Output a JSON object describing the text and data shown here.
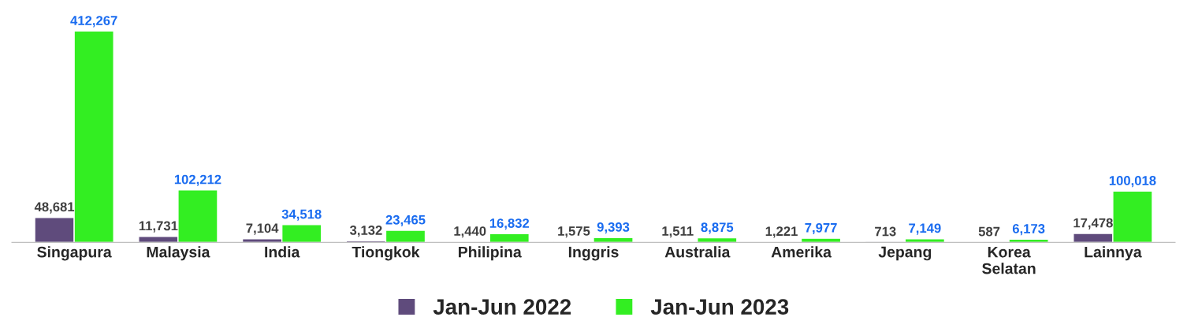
{
  "chart_data": {
    "type": "bar",
    "categories": [
      "Singapura",
      "Malaysia",
      "India",
      "Tiongkok",
      "Philipina",
      "Inggris",
      "Australia",
      "Amerika",
      "Jepang",
      "Korea\nSelatan",
      "Lainnya"
    ],
    "series": [
      {
        "name": "Jan-Jun 2022",
        "color": "#5f4b7c",
        "values": [
          48681,
          11731,
          7104,
          3132,
          1440,
          1575,
          1511,
          1221,
          713,
          587,
          17478
        ],
        "value_labels": [
          "48,681",
          "11,731",
          "7,104",
          "3,132",
          "1,440",
          "1,575",
          "1,511",
          "1,221",
          "713",
          "587",
          "17,478"
        ]
      },
      {
        "name": "Jan-Jun 2023",
        "color": "#33ee22",
        "values": [
          412267,
          102212,
          34518,
          23465,
          16832,
          9393,
          8875,
          7977,
          7149,
          6173,
          100018
        ],
        "value_labels": [
          "412,267",
          "102,212",
          "34,518",
          "23,465",
          "16,832",
          "9,393",
          "8,875",
          "7,977",
          "7,149",
          "6,173",
          "100,018"
        ]
      }
    ],
    "tick_labels": "x",
    "grid": false,
    "legend": "bottom"
  }
}
